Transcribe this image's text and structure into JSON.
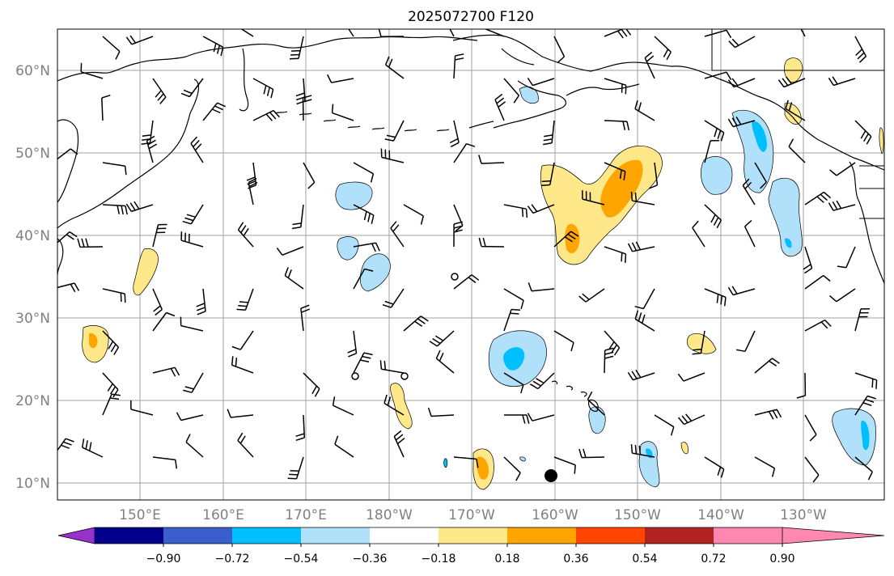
{
  "title": "2025072700 F120",
  "map": {
    "lon_labels": [
      "150°E",
      "160°E",
      "170°E",
      "180°W",
      "170°W",
      "160°W",
      "150°W",
      "140°W",
      "130°W"
    ],
    "lat_labels": [
      "60°N",
      "50°N",
      "40°N",
      "30°N",
      "20°N",
      "10°N"
    ],
    "gridlines": true,
    "markers": [
      "storm-center-dot"
    ]
  },
  "colorbar": {
    "tick_labels": [
      "−0.90",
      "−0.72",
      "−0.54",
      "−0.36",
      "−0.18",
      "0.18",
      "0.36",
      "0.54",
      "0.72",
      "0.90"
    ],
    "colors": [
      "#9932cc",
      "#00008b",
      "#3a5fcd",
      "#00bfff",
      "#b0e0fa",
      "#ffffff",
      "#ffe88a",
      "#ffa500",
      "#ff4500",
      "#b22222",
      "#ff88b0"
    ],
    "extend": "both"
  }
}
